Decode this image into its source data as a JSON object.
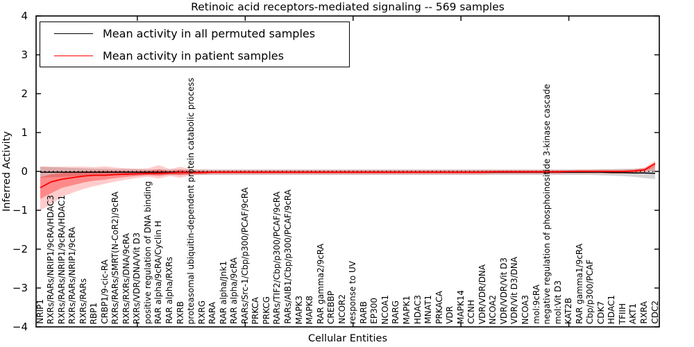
{
  "chart_data": {
    "type": "line",
    "title": "Retinoic acid receptors-mediated signaling -- 569 samples",
    "xlabel": "Cellular Entities",
    "ylabel": "Inferred Activity",
    "ylim": [
      -4,
      4
    ],
    "yticks": [
      "4",
      "3",
      "2",
      "1",
      "0",
      "−1",
      "−2",
      "−3",
      "−4"
    ],
    "grid": false,
    "legend_position": "upper-left",
    "zero_line_style": "dotted",
    "categories": [
      "NRIP1",
      "RXRs/RARs/NRIP1/9cRA/HDAC3",
      "RXRs/RARs/NRIP1/9cRA/HDAC1",
      "RXRs/RARs/NRIP1/9cRA",
      "RXRs/RARs",
      "RBP1",
      "CRBP1/9-cic-RA",
      "RXRs/RARs/SMRT(N-CoR2)/9cRA",
      "RXRs/RXRs/DNA/9cRA",
      "RXRs/VDR/DNA/Vit D3",
      "positive regulation of DNA binding",
      "RAR alpha/9cRA/Cyclin H",
      "RAR alpha/RXRs",
      "RXRB",
      "proteasomal ubiquitin-dependent protein catabolic process",
      "RXRG",
      "RARA",
      "RAR alpha/Jnk1",
      "RAR alpha/9cRA",
      "RARs/Src-1/Cbp/p300/PCAF/9cRA",
      "PRKCA",
      "PRKCG",
      "RARs/TIF2/Cbp/p300/PCAF/9cRA",
      "RARs/AIB1/Cbp/p300/PCAF/9cRA",
      "MAPK3",
      "MAPK8",
      "RAR gamma2/9cRA",
      "CREBBP",
      "NCOR2",
      "response to UV",
      "RARB",
      "EP300",
      "NCOA1",
      "RARG",
      "MAPK1",
      "HDAC3",
      "MNAT1",
      "PRKACA",
      "VDR",
      "MAPK14",
      "CCNH",
      "VDR/VDR/DNA",
      "NCOA2",
      "VDR/VDR/Vit D3",
      "VDR/Vit D3/DNA",
      "NCOA3",
      "mol:9cRA",
      "negative regulation of phosphoinositide 3-kinase cascade",
      "mol:Vit D3",
      "KAT2B",
      "RAR gamma1/9cRA",
      "Cbp/p300/PCAF",
      "CDK7",
      "HDAC1",
      "TFIIH",
      "AKT1",
      "RXRA",
      "CDC2"
    ],
    "series": [
      {
        "name": "Mean activity in all permuted samples",
        "color": "#000000",
        "values": [
          -0.02,
          -0.02,
          -0.02,
          -0.02,
          -0.02,
          -0.02,
          -0.02,
          -0.02,
          -0.02,
          -0.02,
          -0.02,
          -0.02,
          -0.02,
          -0.02,
          -0.02,
          -0.02,
          -0.02,
          -0.02,
          -0.02,
          -0.02,
          -0.02,
          -0.02,
          -0.02,
          -0.02,
          -0.02,
          -0.02,
          -0.02,
          -0.02,
          -0.02,
          -0.02,
          -0.02,
          -0.02,
          -0.02,
          -0.02,
          -0.02,
          -0.02,
          -0.02,
          -0.02,
          -0.02,
          -0.02,
          -0.02,
          -0.02,
          -0.02,
          -0.02,
          -0.02,
          -0.02,
          -0.02,
          -0.02,
          -0.02,
          -0.02,
          -0.02,
          -0.02,
          -0.02,
          -0.03,
          -0.03,
          -0.04,
          -0.04,
          -0.05
        ],
        "band_upper": [
          0.12,
          0.11,
          0.1,
          0.09,
          0.08,
          0.07,
          0.07,
          0.06,
          0.06,
          0.06,
          0.05,
          0.05,
          0.05,
          0.05,
          0.05,
          0.05,
          0.05,
          0.05,
          0.05,
          0.05,
          0.05,
          0.05,
          0.05,
          0.05,
          0.05,
          0.05,
          0.05,
          0.05,
          0.05,
          0.05,
          0.05,
          0.05,
          0.05,
          0.05,
          0.05,
          0.05,
          0.05,
          0.05,
          0.05,
          0.05,
          0.05,
          0.05,
          0.05,
          0.05,
          0.05,
          0.05,
          0.05,
          0.05,
          0.05,
          0.05,
          0.05,
          0.05,
          0.06,
          0.06,
          0.07,
          0.07,
          0.08,
          0.1
        ],
        "band_lower": [
          -0.16,
          -0.15,
          -0.14,
          -0.13,
          -0.12,
          -0.11,
          -0.11,
          -0.1,
          -0.1,
          -0.1,
          -0.09,
          -0.09,
          -0.09,
          -0.09,
          -0.09,
          -0.09,
          -0.09,
          -0.09,
          -0.09,
          -0.09,
          -0.09,
          -0.09,
          -0.09,
          -0.09,
          -0.09,
          -0.09,
          -0.09,
          -0.09,
          -0.09,
          -0.09,
          -0.09,
          -0.09,
          -0.09,
          -0.09,
          -0.09,
          -0.09,
          -0.09,
          -0.09,
          -0.09,
          -0.09,
          -0.09,
          -0.09,
          -0.09,
          -0.09,
          -0.09,
          -0.09,
          -0.09,
          -0.09,
          -0.09,
          -0.09,
          -0.09,
          -0.09,
          -0.1,
          -0.11,
          -0.12,
          -0.14,
          -0.17,
          -0.2
        ]
      },
      {
        "name": "Mean activity in patient samples",
        "color": "#ff0000",
        "values": [
          -0.42,
          -0.27,
          -0.2,
          -0.16,
          -0.12,
          -0.1,
          -0.1,
          -0.08,
          -0.07,
          -0.06,
          -0.05,
          -0.05,
          -0.04,
          -0.03,
          -0.03,
          -0.03,
          -0.02,
          -0.02,
          -0.02,
          -0.02,
          -0.02,
          -0.02,
          -0.02,
          -0.02,
          -0.02,
          -0.02,
          -0.02,
          -0.02,
          -0.02,
          -0.02,
          -0.02,
          -0.02,
          -0.02,
          -0.02,
          -0.02,
          -0.02,
          -0.02,
          -0.02,
          -0.02,
          -0.02,
          -0.02,
          -0.02,
          -0.01,
          -0.01,
          -0.01,
          -0.01,
          -0.01,
          -0.01,
          -0.01,
          0,
          0,
          0,
          0,
          0,
          0,
          0.01,
          0.04,
          0.2
        ],
        "band_upper": [
          0.13,
          0.12,
          0.12,
          0.12,
          0.12,
          0.11,
          0.13,
          0.1,
          0.08,
          0.07,
          0.08,
          0.16,
          0.06,
          0.12,
          0.05,
          0.05,
          0.04,
          0.04,
          0.04,
          0.04,
          0.04,
          0.04,
          0.04,
          0.04,
          0.04,
          0.04,
          0.04,
          0.04,
          0.04,
          0.04,
          0.04,
          0.04,
          0.04,
          0.04,
          0.04,
          0.04,
          0.04,
          0.04,
          0.04,
          0.04,
          0.04,
          0.04,
          0.04,
          0.04,
          0.04,
          0.04,
          0.04,
          0.04,
          0.04,
          0.04,
          0.05,
          0.05,
          0.05,
          0.05,
          0.05,
          0.06,
          0.1,
          0.27
        ],
        "band_lower": [
          -1,
          -0.85,
          -0.65,
          -0.55,
          -0.45,
          -0.38,
          -0.32,
          -0.26,
          -0.21,
          -0.17,
          -0.14,
          -0.18,
          -0.12,
          -0.16,
          -0.1,
          -0.09,
          -0.08,
          -0.08,
          -0.08,
          -0.08,
          -0.08,
          -0.08,
          -0.08,
          -0.08,
          -0.08,
          -0.08,
          -0.08,
          -0.08,
          -0.08,
          -0.08,
          -0.08,
          -0.08,
          -0.08,
          -0.08,
          -0.08,
          -0.08,
          -0.08,
          -0.08,
          -0.08,
          -0.08,
          -0.08,
          -0.08,
          -0.07,
          -0.07,
          -0.07,
          -0.07,
          -0.07,
          -0.07,
          -0.07,
          -0.06,
          -0.06,
          -0.06,
          -0.06,
          -0.06,
          -0.06,
          -0.05,
          -0.02,
          0.02
        ]
      }
    ]
  }
}
